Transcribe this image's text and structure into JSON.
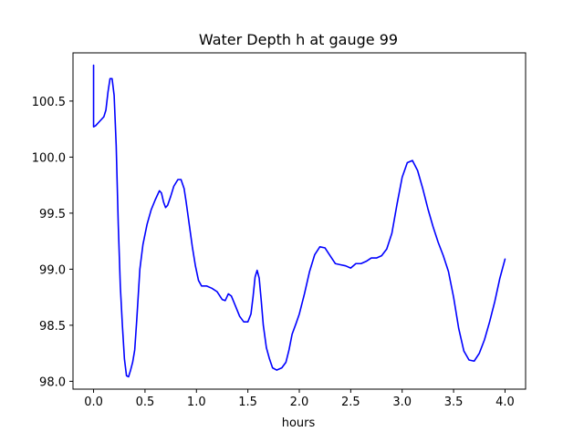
{
  "chart_data": {
    "type": "line",
    "title": "Water Depth h at gauge 99",
    "xlabel": "hours",
    "ylabel": "",
    "xlim": [
      -0.2,
      4.2
    ],
    "ylim": [
      97.93,
      100.93
    ],
    "grid": false,
    "legend": "none",
    "xticks": [
      {
        "value": 0.0,
        "label": "0.0"
      },
      {
        "value": 0.5,
        "label": "0.5"
      },
      {
        "value": 1.0,
        "label": "1.0"
      },
      {
        "value": 1.5,
        "label": "1.5"
      },
      {
        "value": 2.0,
        "label": "2.0"
      },
      {
        "value": 2.5,
        "label": "2.5"
      },
      {
        "value": 3.0,
        "label": "3.0"
      },
      {
        "value": 3.5,
        "label": "3.5"
      },
      {
        "value": 4.0,
        "label": "4.0"
      }
    ],
    "yticks": [
      {
        "value": 98.0,
        "label": "98.0"
      },
      {
        "value": 98.5,
        "label": "98.5"
      },
      {
        "value": 99.0,
        "label": "99.0"
      },
      {
        "value": 99.5,
        "label": "99.5"
      },
      {
        "value": 100.0,
        "label": "100.0"
      },
      {
        "value": 100.5,
        "label": "100.5"
      }
    ],
    "series": [
      {
        "color": "#0000ff",
        "points": [
          [
            0.0,
            100.82
          ],
          [
            0.0,
            100.27
          ],
          [
            0.02,
            100.28
          ],
          [
            0.05,
            100.31
          ],
          [
            0.1,
            100.36
          ],
          [
            0.12,
            100.42
          ],
          [
            0.14,
            100.58
          ],
          [
            0.16,
            100.7
          ],
          [
            0.18,
            100.7
          ],
          [
            0.2,
            100.55
          ],
          [
            0.22,
            100.1
          ],
          [
            0.24,
            99.4
          ],
          [
            0.26,
            98.85
          ],
          [
            0.28,
            98.5
          ],
          [
            0.3,
            98.2
          ],
          [
            0.32,
            98.05
          ],
          [
            0.34,
            98.04
          ],
          [
            0.36,
            98.1
          ],
          [
            0.38,
            98.17
          ],
          [
            0.4,
            98.28
          ],
          [
            0.42,
            98.55
          ],
          [
            0.45,
            99.0
          ],
          [
            0.48,
            99.22
          ],
          [
            0.52,
            99.4
          ],
          [
            0.56,
            99.53
          ],
          [
            0.6,
            99.62
          ],
          [
            0.64,
            99.7
          ],
          [
            0.66,
            99.68
          ],
          [
            0.68,
            99.6
          ],
          [
            0.7,
            99.55
          ],
          [
            0.72,
            99.57
          ],
          [
            0.75,
            99.65
          ],
          [
            0.78,
            99.74
          ],
          [
            0.82,
            99.8
          ],
          [
            0.85,
            99.8
          ],
          [
            0.88,
            99.72
          ],
          [
            0.9,
            99.6
          ],
          [
            0.93,
            99.4
          ],
          [
            0.96,
            99.2
          ],
          [
            0.99,
            99.03
          ],
          [
            1.02,
            98.9
          ],
          [
            1.05,
            98.85
          ],
          [
            1.1,
            98.85
          ],
          [
            1.15,
            98.83
          ],
          [
            1.2,
            98.8
          ],
          [
            1.25,
            98.73
          ],
          [
            1.28,
            98.72
          ],
          [
            1.31,
            98.78
          ],
          [
            1.34,
            98.76
          ],
          [
            1.38,
            98.67
          ],
          [
            1.42,
            98.58
          ],
          [
            1.46,
            98.53
          ],
          [
            1.5,
            98.53
          ],
          [
            1.53,
            98.6
          ],
          [
            1.55,
            98.75
          ],
          [
            1.57,
            98.93
          ],
          [
            1.59,
            98.99
          ],
          [
            1.61,
            98.92
          ],
          [
            1.63,
            98.72
          ],
          [
            1.65,
            98.5
          ],
          [
            1.68,
            98.3
          ],
          [
            1.71,
            98.2
          ],
          [
            1.74,
            98.12
          ],
          [
            1.78,
            98.1
          ],
          [
            1.83,
            98.12
          ],
          [
            1.87,
            98.17
          ],
          [
            1.9,
            98.28
          ],
          [
            1.93,
            98.42
          ],
          [
            1.97,
            98.52
          ],
          [
            2.0,
            98.6
          ],
          [
            2.05,
            98.78
          ],
          [
            2.1,
            98.98
          ],
          [
            2.15,
            99.13
          ],
          [
            2.2,
            99.2
          ],
          [
            2.25,
            99.19
          ],
          [
            2.3,
            99.12
          ],
          [
            2.35,
            99.05
          ],
          [
            2.4,
            99.04
          ],
          [
            2.45,
            99.03
          ],
          [
            2.5,
            99.01
          ],
          [
            2.55,
            99.05
          ],
          [
            2.6,
            99.05
          ],
          [
            2.65,
            99.07
          ],
          [
            2.7,
            99.1
          ],
          [
            2.75,
            99.1
          ],
          [
            2.8,
            99.12
          ],
          [
            2.85,
            99.18
          ],
          [
            2.9,
            99.32
          ],
          [
            2.95,
            99.58
          ],
          [
            3.0,
            99.82
          ],
          [
            3.05,
            99.95
          ],
          [
            3.1,
            99.97
          ],
          [
            3.15,
            99.88
          ],
          [
            3.2,
            99.72
          ],
          [
            3.25,
            99.54
          ],
          [
            3.3,
            99.38
          ],
          [
            3.35,
            99.24
          ],
          [
            3.4,
            99.12
          ],
          [
            3.45,
            98.98
          ],
          [
            3.5,
            98.75
          ],
          [
            3.55,
            98.47
          ],
          [
            3.6,
            98.27
          ],
          [
            3.65,
            98.19
          ],
          [
            3.7,
            98.18
          ],
          [
            3.75,
            98.25
          ],
          [
            3.8,
            98.37
          ],
          [
            3.85,
            98.53
          ],
          [
            3.9,
            98.71
          ],
          [
            3.95,
            98.92
          ],
          [
            4.0,
            99.09
          ]
        ]
      }
    ]
  }
}
